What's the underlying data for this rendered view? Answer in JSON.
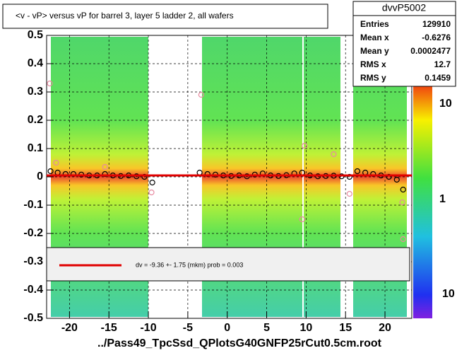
{
  "chart_data": {
    "type": "scatter",
    "title": "<v - vP>       versus   vP for barrel 3, layer 5 ladder 2, all wafers",
    "xlabel": "../Pass49_TpcSsd_QPlotsG40GNFP25rCut0.5cm.root",
    "xlim": [
      -22.9,
      23.4
    ],
    "ylim": [
      -0.5,
      0.5
    ],
    "xticks": [
      -20,
      -15,
      -10,
      -5,
      0,
      5,
      10,
      15,
      20
    ],
    "yticks": [
      0.5,
      0.4,
      0.3,
      0.2,
      0.1,
      0,
      -0.1,
      -0.2,
      -0.3,
      -0.4,
      -0.5
    ],
    "grid": true,
    "series": [
      {
        "name": "profile",
        "color": "#000000",
        "x": [
          -22.4,
          -21.5,
          -20.5,
          -19.5,
          -18.5,
          -17.5,
          -16.5,
          -15.5,
          -14.5,
          -13.5,
          -12.5,
          -11.5,
          -10.5,
          -9.5,
          -3.5,
          -2.5,
          -1.5,
          -0.5,
          0.5,
          1.5,
          2.5,
          3.5,
          4.5,
          5.5,
          6.5,
          7.5,
          8.5,
          9.5,
          10.5,
          11.5,
          12.5,
          13.5,
          14.5,
          15.5,
          16.5,
          17.5,
          18.5,
          19.5,
          20.5,
          21.5,
          22.3
        ],
        "values": [
          0.02,
          0.015,
          0.01,
          0.01,
          0.008,
          0.005,
          0.005,
          0.01,
          0.005,
          0.003,
          0.005,
          0.002,
          0.0,
          -0.02,
          0.015,
          0.01,
          0.008,
          0.005,
          0.003,
          0.005,
          0.002,
          0.008,
          0.012,
          0.005,
          0.003,
          0.006,
          0.012,
          0.015,
          0.005,
          0.002,
          0.003,
          0.004,
          0.002,
          0.0,
          0.02,
          0.015,
          0.01,
          0.005,
          0.0,
          -0.01,
          -0.045
        ]
      },
      {
        "name": "outliers",
        "color": "#e88aa0",
        "x": [
          -22.5,
          -21.7,
          -15.5,
          -9.6,
          -3.3,
          9.8,
          13.5,
          22.3,
          22.2,
          9.5,
          15.5
        ],
        "values": [
          0.33,
          0.05,
          0.035,
          -0.055,
          0.29,
          0.11,
          0.08,
          -0.22,
          -0.09,
          -0.15,
          -0.06
        ]
      }
    ],
    "stats": {
      "title": "dvvP5002",
      "rows": [
        [
          "Entries",
          "129910"
        ],
        [
          "Mean x",
          "-0.6276"
        ],
        [
          "Mean y",
          "0.0002477"
        ],
        [
          "RMS x",
          "12.7"
        ],
        [
          "RMS y",
          "0.1459"
        ]
      ]
    },
    "fit_label": "dv =   -9.36 +-  1.75 (mkm) prob = 0.003",
    "colorbar": {
      "log": true,
      "labels": [
        "10",
        "1",
        "10"
      ]
    }
  }
}
